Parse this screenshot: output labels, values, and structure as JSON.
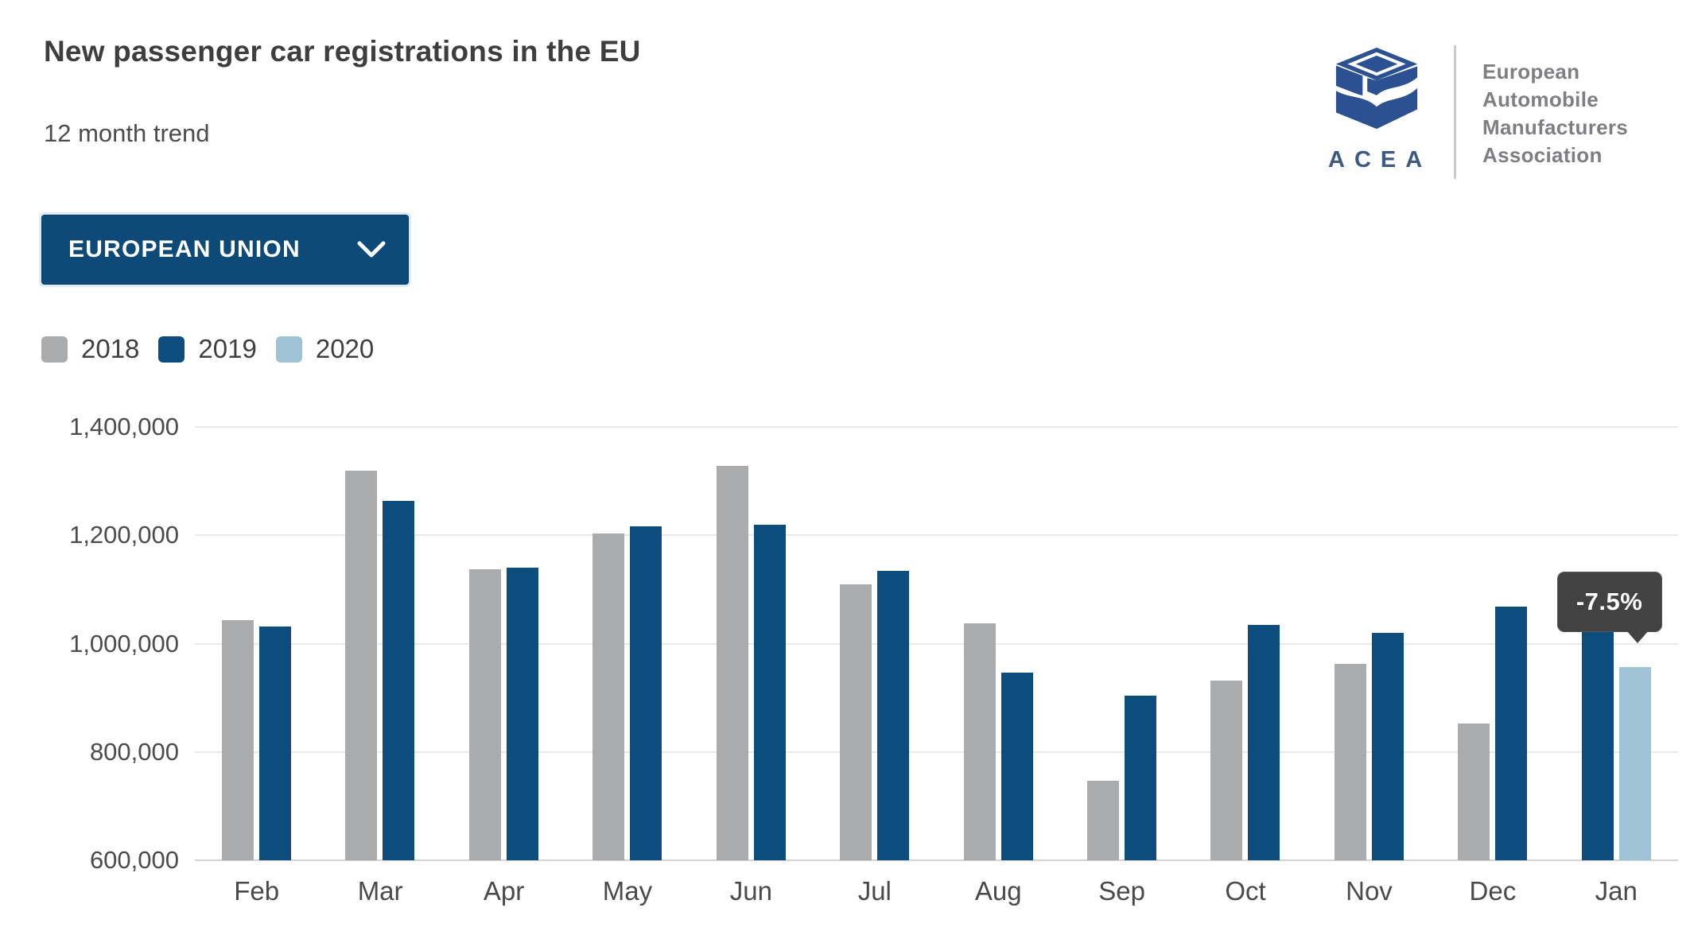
{
  "header": {
    "title": "New passenger car registrations in the EU",
    "subtitle": "12 month trend"
  },
  "logo": {
    "acronym": "ACEA",
    "org_lines": [
      "European",
      "Automobile",
      "Manufacturers",
      "Association"
    ],
    "icon_color": "#2b5192"
  },
  "region_selector": {
    "label": "EUROPEAN UNION",
    "chevron_icon": "chevron-down"
  },
  "legend": [
    {
      "label": "2018",
      "color": "#aaabad"
    },
    {
      "label": "2019",
      "color": "#0d4d7e"
    },
    {
      "label": "2020",
      "color": "#9ec3d4"
    }
  ],
  "chart_data": {
    "type": "bar",
    "title": "New passenger car registrations in the EU - 12 month trend",
    "categories": [
      "Feb",
      "Mar",
      "Apr",
      "May",
      "Jun",
      "Jul",
      "Aug",
      "Sep",
      "Oct",
      "Nov",
      "Dec",
      "Jan"
    ],
    "series": [
      {
        "name": "2018",
        "color": "#aaabad",
        "values": [
          1044000,
          1319000,
          1138000,
          1203000,
          1328000,
          1110000,
          1038000,
          747000,
          932000,
          963000,
          852000,
          null
        ]
      },
      {
        "name": "2019",
        "color": "#0d4d7e",
        "values": [
          1031000,
          1264000,
          1140000,
          1216000,
          1219000,
          1135000,
          947000,
          904000,
          1035000,
          1020000,
          1069000,
          1035000
        ]
      },
      {
        "name": "2020",
        "color": "#9ec3d4",
        "values": [
          null,
          null,
          null,
          null,
          null,
          null,
          null,
          null,
          null,
          null,
          null,
          957000
        ]
      }
    ],
    "ylim": [
      600000,
      1400000
    ],
    "ytick_step": 200000,
    "ytick_labels": [
      "600,000",
      "800,000",
      "1,000,000",
      "1,200,000",
      "1,400,000"
    ],
    "grid": true,
    "legend_position": "top-left",
    "annotation": {
      "text": "-7.5%",
      "category": "Jan",
      "series": "2020"
    }
  }
}
